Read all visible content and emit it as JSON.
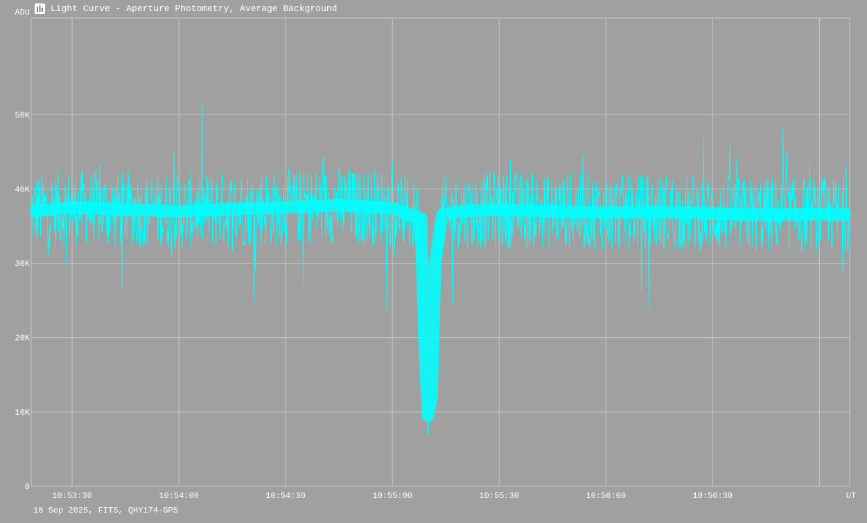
{
  "window": {
    "title": "Light Curve - Aperture Photometry, Average Background",
    "icon": "light-curve-app-icon"
  },
  "footer": {
    "info": "18 Sep 2025, FITS, QHY174-GPS"
  },
  "colors": {
    "background": "#a0a0a0",
    "grid": "#c8c8c8",
    "series": "#00ffff",
    "text": "#ffffff"
  },
  "chart_data": {
    "type": "line",
    "title": "Light Curve - Aperture Photometry, Average Background",
    "ylabel": "ADU",
    "xlabel": "UT",
    "ylim": [
      0,
      63000
    ],
    "xlim": [
      "10:53:18.5",
      "10:57:08.5"
    ],
    "yticks": [
      {
        "value": 0,
        "label": "0"
      },
      {
        "value": 10000,
        "label": "10K"
      },
      {
        "value": 20000,
        "label": "20K"
      },
      {
        "value": 30000,
        "label": "30K"
      },
      {
        "value": 40000,
        "label": "40K"
      },
      {
        "value": 50000,
        "label": "50K"
      }
    ],
    "xticks": [
      "10:53:30",
      "10:54:00",
      "10:54:30",
      "10:55:00",
      "10:55:30",
      "10:56:00",
      "10:56:30"
    ],
    "grid": true,
    "series": [
      {
        "x": [
          "10:53:18.5",
          "10:53:30",
          "10:53:45",
          "10:54:00",
          "10:54:15",
          "10:54:30",
          "10:54:45",
          "10:55:00",
          "10:55:08",
          "10:55:09",
          "10:55:10",
          "10:55:11",
          "10:55:12",
          "10:55:14",
          "10:55:20",
          "10:55:30",
          "10:55:45",
          "10:56:00",
          "10:56:15",
          "10:56:30",
          "10:56:45",
          "10:57:00",
          "10:57:08.5"
        ],
        "values": [
          37000,
          37500,
          37200,
          37000,
          37300,
          37500,
          37800,
          37400,
          36000,
          20000,
          9500,
          12000,
          30000,
          36500,
          37000,
          37200,
          37000,
          36800,
          36900,
          36700,
          36500,
          36600,
          36500
        ]
      }
    ]
  }
}
